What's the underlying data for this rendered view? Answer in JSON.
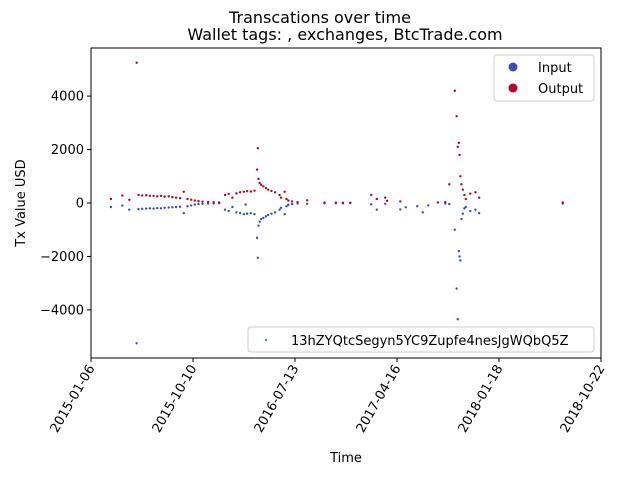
{
  "chart_data": {
    "type": "scatter",
    "title": "Transcations over time",
    "subtitle": "Wallet tags: , exchanges, BtcTrade.com",
    "xlabel": "Time",
    "ylabel": "Tx Value USD",
    "x_tick_labels": [
      "2015-01-06",
      "2015-10-10",
      "2016-07-13",
      "2017-04-16",
      "2018-01-18",
      "2018-10-22"
    ],
    "xlim": [
      "2015-01-06",
      "2018-10-22"
    ],
    "y_ticks": [
      -4000,
      -2000,
      0,
      2000,
      4000
    ],
    "y_tick_labels": [
      "−4000",
      "−2000",
      "0",
      "2000",
      "4000"
    ],
    "ylim": [
      -5800,
      5800
    ],
    "grid": false,
    "legends": {
      "type_legend": {
        "placement": "top-right",
        "entries": [
          {
            "name": "Input",
            "color": "#3b4cc0"
          },
          {
            "name": "Output",
            "color": "#b40426"
          }
        ]
      },
      "address_legend": {
        "placement": "bottom-right",
        "entries": [
          {
            "name": "13hZYQtcSegyn5YC9Zupfe4nesJgWQbQ5Z",
            "color": "#2ca089"
          }
        ]
      }
    },
    "series": [
      {
        "name": "Input",
        "color": "#3b4cc0",
        "points": [
          [
            "2015-03-01",
            -150
          ],
          [
            "2015-04-01",
            -100
          ],
          [
            "2015-04-20",
            -250
          ],
          [
            "2015-05-10",
            -5250
          ],
          [
            "2015-05-15",
            -230
          ],
          [
            "2015-05-25",
            -220
          ],
          [
            "2015-06-05",
            -210
          ],
          [
            "2015-06-15",
            -200
          ],
          [
            "2015-06-25",
            -210
          ],
          [
            "2015-07-05",
            -190
          ],
          [
            "2015-07-15",
            -200
          ],
          [
            "2015-07-25",
            -180
          ],
          [
            "2015-08-05",
            -170
          ],
          [
            "2015-08-15",
            -160
          ],
          [
            "2015-08-25",
            -150
          ],
          [
            "2015-09-05",
            -140
          ],
          [
            "2015-09-15",
            -380
          ],
          [
            "2015-09-25",
            -120
          ],
          [
            "2015-10-05",
            -90
          ],
          [
            "2015-10-15",
            -60
          ],
          [
            "2015-10-25",
            -40
          ],
          [
            "2015-11-05",
            -30
          ],
          [
            "2015-11-20",
            -20
          ],
          [
            "2015-12-05",
            -15
          ],
          [
            "2015-12-20",
            -10
          ],
          [
            "2016-01-05",
            -250
          ],
          [
            "2016-01-15",
            -300
          ],
          [
            "2016-01-25",
            -150
          ],
          [
            "2016-02-05",
            -350
          ],
          [
            "2016-02-15",
            -380
          ],
          [
            "2016-02-25",
            -420
          ],
          [
            "2016-03-01",
            -60
          ],
          [
            "2016-03-05",
            -400
          ],
          [
            "2016-03-15",
            -380
          ],
          [
            "2016-03-25",
            -420
          ],
          [
            "2016-04-01",
            -1300
          ],
          [
            "2016-04-03",
            -2050
          ],
          [
            "2016-04-05",
            -850
          ],
          [
            "2016-04-08",
            -700
          ],
          [
            "2016-04-12",
            -600
          ],
          [
            "2016-04-18",
            -560
          ],
          [
            "2016-04-25",
            -500
          ],
          [
            "2016-05-01",
            -450
          ],
          [
            "2016-05-10",
            -400
          ],
          [
            "2016-05-20",
            -350
          ],
          [
            "2016-06-01",
            -250
          ],
          [
            "2016-06-05",
            -180
          ],
          [
            "2016-06-15",
            -420
          ],
          [
            "2016-06-20",
            -120
          ],
          [
            "2016-06-25",
            -70
          ],
          [
            "2016-07-05",
            -40
          ],
          [
            "2016-07-20",
            -20
          ],
          [
            "2016-08-15",
            -30
          ],
          [
            "2016-10-01",
            -10
          ],
          [
            "2016-11-01",
            -5
          ],
          [
            "2016-11-20",
            -15
          ],
          [
            "2016-12-10",
            -5
          ],
          [
            "2017-02-05",
            -50
          ],
          [
            "2017-02-20",
            -250
          ],
          [
            "2017-03-15",
            -30
          ],
          [
            "2017-04-25",
            -240
          ],
          [
            "2017-05-10",
            -160
          ],
          [
            "2017-06-10",
            -120
          ],
          [
            "2017-06-25",
            -350
          ],
          [
            "2017-07-10",
            -90
          ],
          [
            "2017-08-25",
            -20
          ],
          [
            "2017-09-05",
            -40
          ],
          [
            "2017-09-20",
            -1000
          ],
          [
            "2017-09-25",
            -3200
          ],
          [
            "2017-09-28",
            -4350
          ],
          [
            "2017-10-01",
            -1800
          ],
          [
            "2017-10-03",
            -2000
          ],
          [
            "2017-10-05",
            -2150
          ],
          [
            "2017-10-08",
            -600
          ],
          [
            "2017-10-12",
            -400
          ],
          [
            "2017-10-16",
            -200
          ],
          [
            "2017-10-20",
            -150
          ],
          [
            "2017-11-01",
            -300
          ],
          [
            "2017-11-15",
            -250
          ],
          [
            "2017-11-25",
            -380
          ],
          [
            "2018-07-10",
            -20
          ]
        ]
      },
      {
        "name": "Output",
        "color": "#b40426",
        "points": [
          [
            "2015-03-01",
            150
          ],
          [
            "2015-04-01",
            280
          ],
          [
            "2015-04-20",
            120
          ],
          [
            "2015-05-10",
            5250
          ],
          [
            "2015-05-15",
            300
          ],
          [
            "2015-05-25",
            280
          ],
          [
            "2015-06-05",
            290
          ],
          [
            "2015-06-15",
            270
          ],
          [
            "2015-06-25",
            260
          ],
          [
            "2015-07-05",
            250
          ],
          [
            "2015-07-15",
            270
          ],
          [
            "2015-07-25",
            240
          ],
          [
            "2015-08-05",
            250
          ],
          [
            "2015-08-15",
            220
          ],
          [
            "2015-08-25",
            200
          ],
          [
            "2015-09-05",
            180
          ],
          [
            "2015-09-15",
            420
          ],
          [
            "2015-09-25",
            150
          ],
          [
            "2015-10-05",
            120
          ],
          [
            "2015-10-15",
            90
          ],
          [
            "2015-10-25",
            70
          ],
          [
            "2015-11-05",
            50
          ],
          [
            "2015-11-20",
            40
          ],
          [
            "2015-12-05",
            30
          ],
          [
            "2015-12-20",
            20
          ],
          [
            "2016-01-05",
            300
          ],
          [
            "2016-01-15",
            340
          ],
          [
            "2016-01-25",
            200
          ],
          [
            "2016-02-05",
            360
          ],
          [
            "2016-02-15",
            400
          ],
          [
            "2016-02-25",
            420
          ],
          [
            "2016-03-05",
            440
          ],
          [
            "2016-03-15",
            430
          ],
          [
            "2016-03-25",
            460
          ],
          [
            "2016-04-01",
            1250
          ],
          [
            "2016-04-03",
            2050
          ],
          [
            "2016-04-05",
            900
          ],
          [
            "2016-04-08",
            750
          ],
          [
            "2016-04-12",
            680
          ],
          [
            "2016-04-18",
            620
          ],
          [
            "2016-04-25",
            560
          ],
          [
            "2016-05-01",
            500
          ],
          [
            "2016-05-10",
            450
          ],
          [
            "2016-05-20",
            400
          ],
          [
            "2016-06-01",
            300
          ],
          [
            "2016-06-05",
            200
          ],
          [
            "2016-06-15",
            420
          ],
          [
            "2016-06-20",
            150
          ],
          [
            "2016-06-25",
            90
          ],
          [
            "2016-07-05",
            60
          ],
          [
            "2016-07-20",
            30
          ],
          [
            "2016-08-15",
            100
          ],
          [
            "2016-10-01",
            15
          ],
          [
            "2016-11-01",
            10
          ],
          [
            "2016-11-20",
            10
          ],
          [
            "2016-12-10",
            8
          ],
          [
            "2017-02-05",
            300
          ],
          [
            "2017-02-20",
            150
          ],
          [
            "2017-03-15",
            200
          ],
          [
            "2017-03-20",
            80
          ],
          [
            "2017-04-25",
            60
          ],
          [
            "2017-08-05",
            20
          ],
          [
            "2017-08-25",
            30
          ],
          [
            "2017-09-05",
            700
          ],
          [
            "2017-09-20",
            4200
          ],
          [
            "2017-09-25",
            3250
          ],
          [
            "2017-09-28",
            2100
          ],
          [
            "2017-10-01",
            2250
          ],
          [
            "2017-10-03",
            1800
          ],
          [
            "2017-10-05",
            1000
          ],
          [
            "2017-10-08",
            700
          ],
          [
            "2017-10-12",
            500
          ],
          [
            "2017-10-16",
            300
          ],
          [
            "2017-10-20",
            150
          ],
          [
            "2017-11-01",
            350
          ],
          [
            "2017-11-15",
            400
          ],
          [
            "2017-11-25",
            200
          ],
          [
            "2018-07-10",
            20
          ]
        ]
      }
    ]
  }
}
